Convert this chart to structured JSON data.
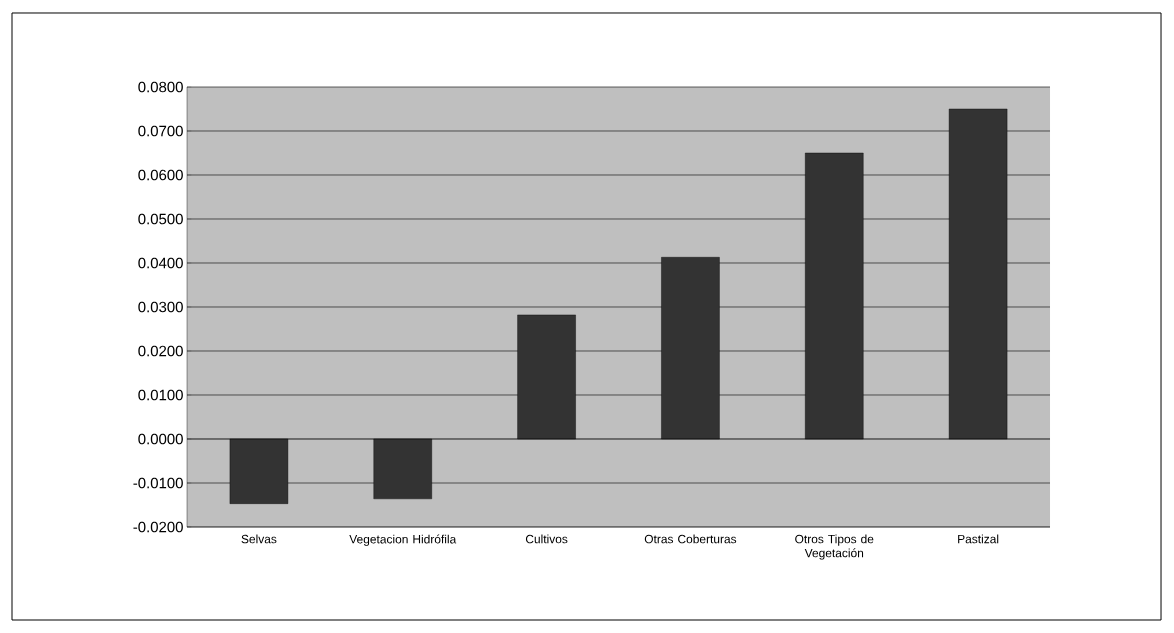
{
  "chart_data": {
    "type": "bar",
    "categories": [
      "Selvas",
      "Vegetacion Hidrófila",
      "Cultivos",
      "Otras Coberturas",
      "Otros Tipos de Vegetación",
      "Pastizal"
    ],
    "values": [
      -0.0147,
      -0.0136,
      0.0282,
      0.0413,
      0.065,
      0.075
    ],
    "color": "#333333",
    "ylim": [
      -0.02,
      0.08
    ],
    "yticks": [
      {
        "value": -0.02,
        "label": "-0.0200"
      },
      {
        "value": -0.01,
        "label": "-0.0100"
      },
      {
        "value": 0,
        "label": "0.0000"
      },
      {
        "value": 0.01,
        "label": "0.0100"
      },
      {
        "value": 0.02,
        "label": "0.0200"
      },
      {
        "value": 0.03,
        "label": "0.0300"
      },
      {
        "value": 0.04,
        "label": "0.0400"
      },
      {
        "value": 0.05,
        "label": "0.0500"
      },
      {
        "value": 0.06,
        "label": "0.0600"
      },
      {
        "value": 0.07,
        "label": "0.0700"
      },
      {
        "value": 0.08,
        "label": "0.0800"
      }
    ],
    "grid": "y"
  }
}
